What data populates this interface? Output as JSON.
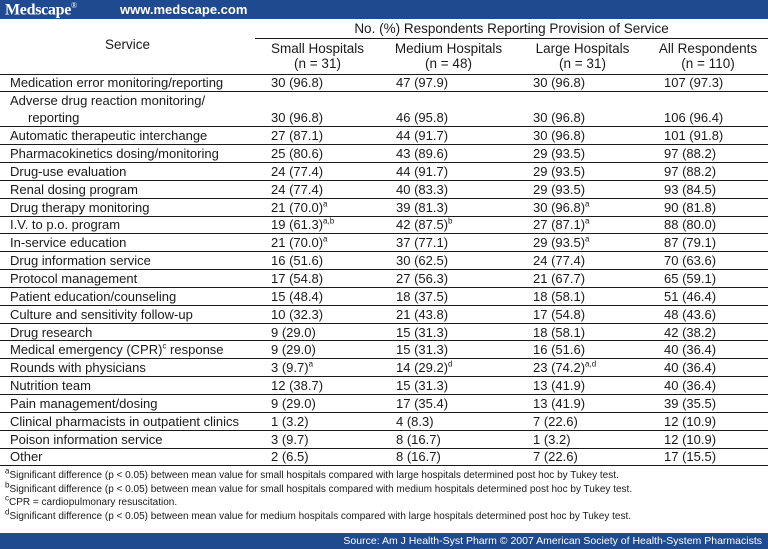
{
  "header": {
    "logo_text": "Medscape",
    "logo_mark": "®",
    "url": "www.medscape.com"
  },
  "table": {
    "group_header": "No. (%) Respondents Reporting Provision of Service",
    "service_header": "Service",
    "columns": [
      {
        "title": "Small Hospitals",
        "n_label": "(n = 31)"
      },
      {
        "title": "Medium Hospitals",
        "n_label": "(n = 48)"
      },
      {
        "title": "Large Hospitals",
        "n_label": "(n = 31)"
      },
      {
        "title": "All Respondents",
        "n_label": "(n = 110)"
      }
    ],
    "rows": [
      {
        "service": "Medication error monitoring/reporting",
        "small": "30 (96.8)",
        "medium": "47 (97.9)",
        "large": "30 (96.8)",
        "all": "107 (97.3)"
      },
      {
        "service": "Adverse drug reaction monitoring/",
        "service_line2": "reporting",
        "small": "30 (96.8)",
        "medium": "46 (95.8)",
        "large": "30 (96.8)",
        "all": "106 (96.4)"
      },
      {
        "service": "Automatic therapeutic interchange",
        "small": "27 (87.1)",
        "medium": "44 (91.7)",
        "large": "30 (96.8)",
        "all": "101 (91.8)"
      },
      {
        "service": "Pharmacokinetics dosing/monitoring",
        "small": "25 (80.6)",
        "medium": "43 (89.6)",
        "large": "29 (93.5)",
        "all": "97 (88.2)"
      },
      {
        "service": "Drug-use evaluation",
        "small": "24 (77.4)",
        "medium": "44 (91.7)",
        "large": "29 (93.5)",
        "all": "97 (88.2)"
      },
      {
        "service": "Renal dosing program",
        "small": "24 (77.4)",
        "medium": "40 (83.3)",
        "large": "29 (93.5)",
        "all": "93 (84.5)"
      },
      {
        "service": "Drug therapy monitoring",
        "small": "21 (70.0)",
        "small_sup": "a",
        "medium": "39 (81.3)",
        "large": "30 (96.8)",
        "large_sup": "a",
        "all": "90 (81.8)"
      },
      {
        "service": "I.V. to p.o. program",
        "small": "19 (61.3)",
        "small_sup": "a,b",
        "medium": "42 (87.5)",
        "medium_sup": "b",
        "large": "27 (87.1)",
        "large_sup": "a",
        "all": "88 (80.0)"
      },
      {
        "service": "In-service education",
        "small": "21 (70.0)",
        "small_sup": "a",
        "medium": "37 (77.1)",
        "large": "29 (93.5)",
        "large_sup": "a",
        "all": "87 (79.1)"
      },
      {
        "service": "Drug information service",
        "small": "16 (51.6)",
        "medium": "30 (62.5)",
        "large": "24 (77.4)",
        "all": "70 (63.6)"
      },
      {
        "service": "Protocol management",
        "small": "17 (54.8)",
        "medium": "27 (56.3)",
        "large": "21 (67.7)",
        "all": "65 (59.1)"
      },
      {
        "service": "Patient education/counseling",
        "small": "15 (48.4)",
        "medium": "18 (37.5)",
        "large": "18 (58.1)",
        "all": "51 (46.4)"
      },
      {
        "service": "Culture and sensitivity follow-up",
        "small": "10 (32.3)",
        "medium": "21 (43.8)",
        "large": "17 (54.8)",
        "all": "48 (43.6)"
      },
      {
        "service": "Drug research",
        "small": "9 (29.0)",
        "medium": "15 (31.3)",
        "large": "18 (58.1)",
        "all": "42 (38.2)"
      },
      {
        "service": "Medical emergency (CPR)",
        "service_sup": "c",
        "service_tail": " response",
        "small": "9 (29.0)",
        "medium": "15 (31.3)",
        "large": "16 (51.6)",
        "all": "40 (36.4)"
      },
      {
        "service": "Rounds with physicians",
        "small": "3 (9.7)",
        "small_sup": "a",
        "medium": "14 (29.2)",
        "medium_sup": "d",
        "large": "23 (74.2)",
        "large_sup": "a,d",
        "all": "40 (36.4)"
      },
      {
        "service": "Nutrition team",
        "small": "12 (38.7)",
        "medium": "15 (31.3)",
        "large": "13 (41.9)",
        "all": "40 (36.4)"
      },
      {
        "service": "Pain management/dosing",
        "small": "9 (29.0)",
        "medium": "17 (35.4)",
        "large": "13 (41.9)",
        "all": "39 (35.5)"
      },
      {
        "service": "Clinical pharmacists in outpatient clinics",
        "small": "1 (3.2)",
        "medium": "4 (8.3)",
        "large": "7 (22.6)",
        "all": "12 (10.9)"
      },
      {
        "service": "Poison information service",
        "small": "3 (9.7)",
        "medium": "8 (16.7)",
        "large": "1 (3.2)",
        "all": "12 (10.9)"
      },
      {
        "service": "Other",
        "small": "2 (6.5)",
        "medium": "8 (16.7)",
        "large": "7 (22.6)",
        "all": "17 (15.5)"
      }
    ]
  },
  "footnotes": [
    {
      "mark": "a",
      "text": "Significant difference (p < 0.05) between mean value for small hospitals compared with large hospitals determined post hoc by Tukey test."
    },
    {
      "mark": "b",
      "text": "Significant difference (p < 0.05) between mean value for small hospitals compared with medium hospitals determined post hoc by Tukey test."
    },
    {
      "mark": "c",
      "text": "CPR = cardiopulmonary resuscitation."
    },
    {
      "mark": "d",
      "text": "Significant difference (p < 0.05) between mean value for medium hospitals compared with large hospitals determined post hoc by Tukey test."
    }
  ],
  "source": "Source: Am J Health-Syst Pharm © 2007 American Society of Health-System Pharmacists",
  "colors": {
    "banner": "#1f4a8f",
    "text": "#1a1a1a",
    "background": "#ffffff"
  }
}
